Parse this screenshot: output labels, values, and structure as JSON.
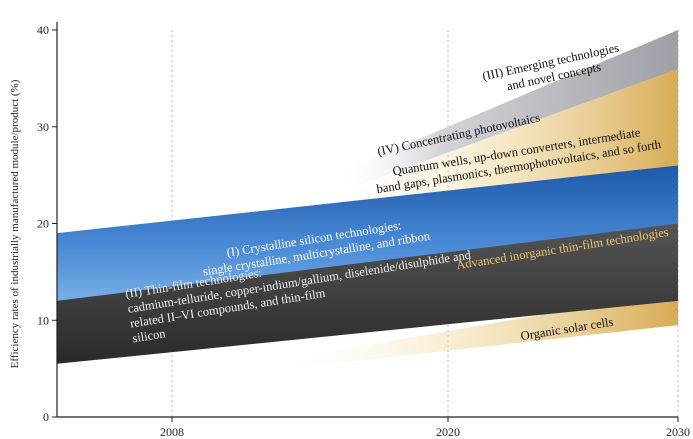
{
  "chart_data": {
    "type": "area",
    "title": "",
    "xlabel": "",
    "ylabel": "Efficiency rates of industrially manufactured module/product (%)",
    "xlim": [
      2003,
      2030
    ],
    "ylim": [
      0,
      40
    ],
    "x_ticks": [
      "2008",
      "2020",
      "2030"
    ],
    "x_tick_values": [
      2008,
      2020,
      2030
    ],
    "y_ticks": [
      "0",
      "10",
      "20",
      "30",
      "40"
    ],
    "y_tick_values": [
      0,
      10,
      20,
      30,
      40
    ],
    "grid": "vertical dotted",
    "series": [
      {
        "id": "emerging",
        "x": [
          2015,
          2030
        ],
        "lower": [
          20,
          26
        ],
        "upper": [
          22,
          40
        ],
        "color": "#d4a64a",
        "labels": [
          "(III) Emerging technologies",
          "and novel concepts"
        ],
        "labels2": [
          "Quantum wells, up-down converters, intermediate",
          "band gaps, plasmonics, thermophotovoltaics, and so forth"
        ]
      },
      {
        "id": "cpv",
        "x": [
          2015,
          2030
        ],
        "lower": [
          23,
          36
        ],
        "upper": [
          25,
          40
        ],
        "color": "#a0a0a8",
        "labels": [
          "(IV) Concentrating photovoltaics"
        ]
      },
      {
        "id": "crystalline",
        "x": [
          2003,
          2030
        ],
        "lower": [
          12,
          16
        ],
        "upper": [
          19,
          26
        ],
        "color": "#3c78c8",
        "labels": [
          "(I) Crystalline silicon technologies:",
          "single crystalline, multicrystalline, and ribbon"
        ]
      },
      {
        "id": "advanced-inorganic",
        "x": [
          2013,
          2030
        ],
        "lower": [
          9,
          13
        ],
        "upper": [
          13,
          19
        ],
        "color": "#d4a64a",
        "labels": [
          "Advanced inorganic thin-film technologies"
        ]
      },
      {
        "id": "thin-film",
        "x": [
          2003,
          2030
        ],
        "lower": [
          5.5,
          12
        ],
        "upper": [
          12,
          20
        ],
        "color": "#3a3a3a",
        "labels": [
          "(II) Thin-film technologies:",
          "cadmium-telluride, copper-indium/gallium, diselenide/disulphide and",
          "related II–VI compounds, and thin-film",
          "silicon"
        ]
      },
      {
        "id": "organic",
        "x": [
          2013,
          2030
        ],
        "lower": [
          5,
          9.5
        ],
        "upper": [
          6,
          13
        ],
        "color": "#d4a64a",
        "labels": [
          "Organic solar cells"
        ]
      }
    ]
  }
}
